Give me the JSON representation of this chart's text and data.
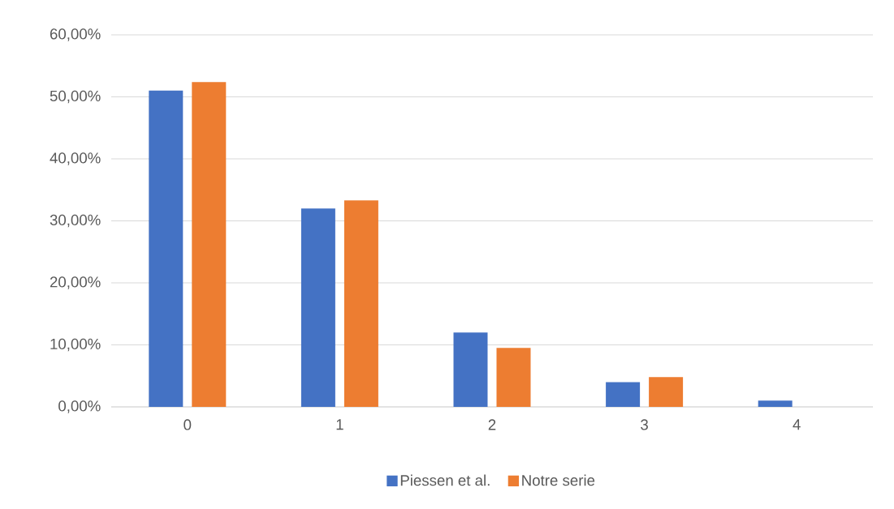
{
  "chart_data": {
    "type": "bar",
    "categories": [
      "0",
      "1",
      "2",
      "3",
      "4"
    ],
    "series": [
      {
        "name": "Piessen et al.",
        "color": "#4472c4",
        "values": [
          51.0,
          32.0,
          12.0,
          4.0,
          1.0
        ]
      },
      {
        "name": "Notre serie",
        "color": "#ed7d31",
        "values": [
          52.4,
          33.3,
          9.5,
          4.8,
          0
        ]
      }
    ],
    "ylim": [
      0,
      60
    ],
    "yticks": [
      {
        "value": 0,
        "label": "0,00%"
      },
      {
        "value": 10,
        "label": "10,00%"
      },
      {
        "value": 20,
        "label": "20,00%"
      },
      {
        "value": 30,
        "label": "30,00%"
      },
      {
        "value": 40,
        "label": "40,00%"
      },
      {
        "value": 50,
        "label": "50,00%"
      },
      {
        "value": 60,
        "label": "60,00%"
      }
    ],
    "grid": "y",
    "legend": "bottom"
  }
}
